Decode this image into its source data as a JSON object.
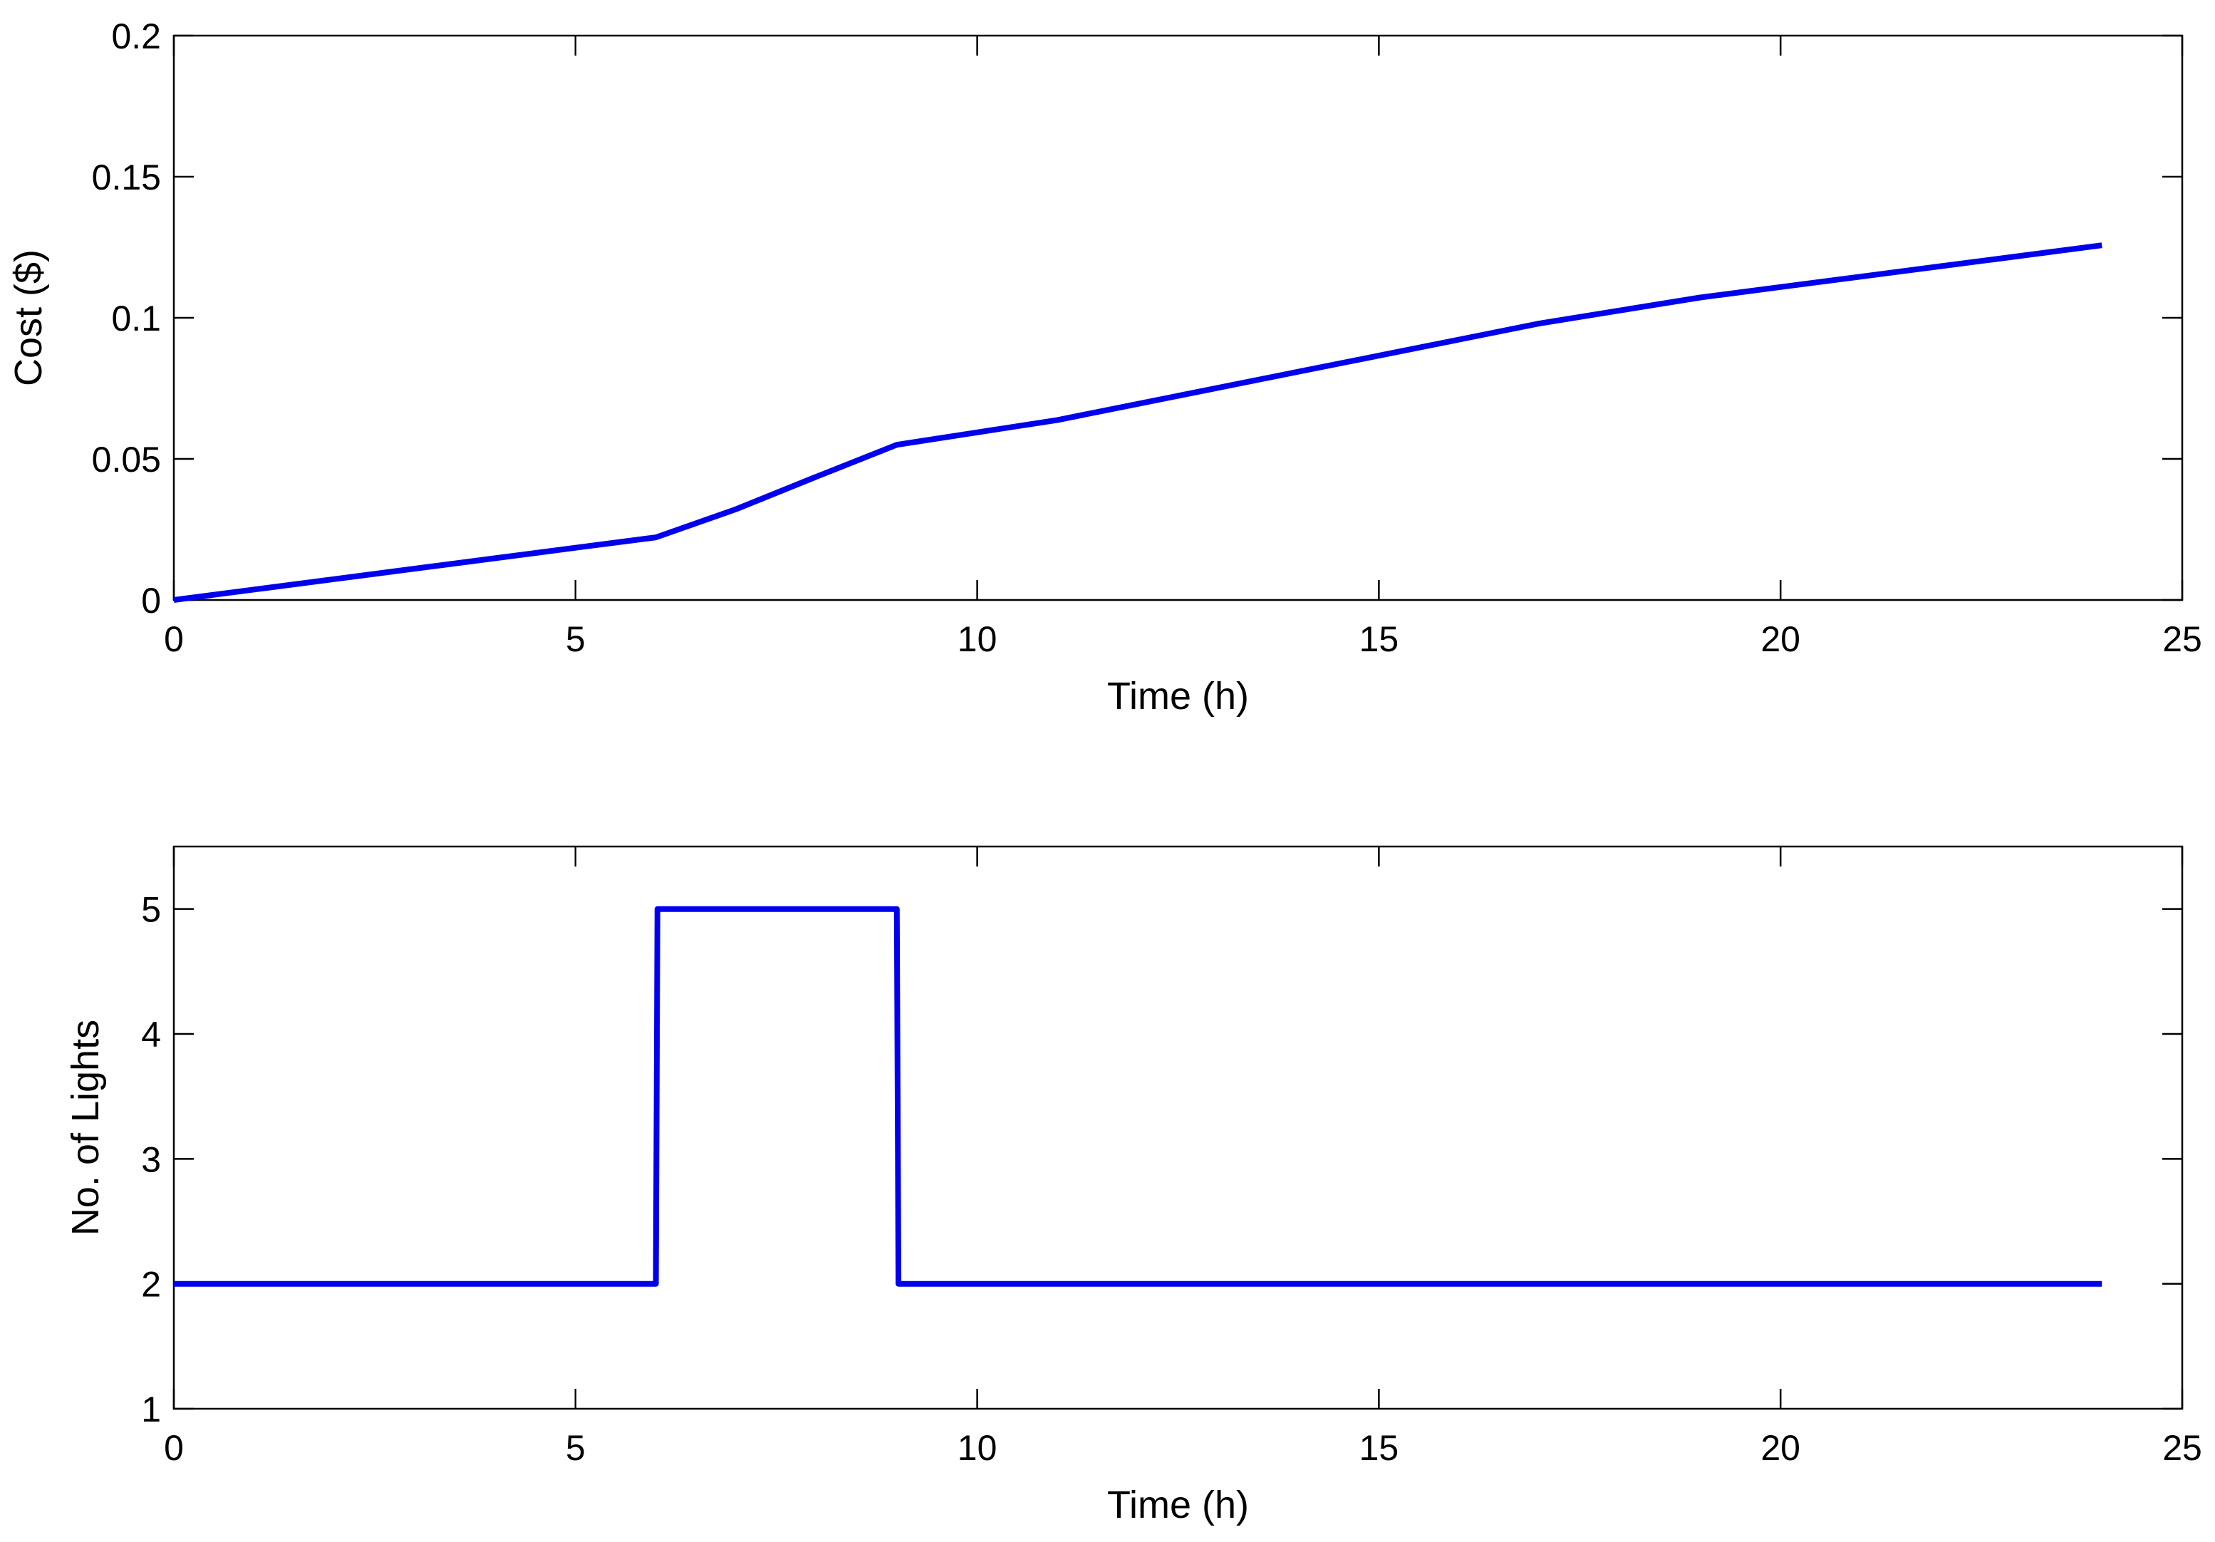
{
  "chart_data": [
    {
      "type": "line",
      "xlabel": "Time (h)",
      "ylabel": "Cost ($)",
      "xlim": [
        0,
        25
      ],
      "ylim": [
        0,
        0.2
      ],
      "xticks": [
        0,
        5,
        10,
        15,
        20,
        25
      ],
      "xtick_labels": [
        "0",
        "5",
        "10",
        "15",
        "20",
        "25"
      ],
      "yticks": [
        0,
        0.05,
        0.1,
        0.15,
        0.2
      ],
      "ytick_labels": [
        "0",
        "0.05",
        "0.1",
        "0.15",
        "0.2"
      ],
      "grid": false,
      "series": [
        {
          "color": "#0000ee",
          "x": [
            0,
            1,
            2,
            3,
            4,
            5,
            6,
            7,
            8,
            9,
            10,
            11,
            12,
            13,
            14,
            15,
            16,
            17,
            18,
            19,
            20,
            21,
            22,
            23,
            24
          ],
          "y": [
            0,
            0.0037,
            0.0074,
            0.0111,
            0.0148,
            0.0185,
            0.0222,
            0.0322,
            0.0437,
            0.055,
            0.0594,
            0.0638,
            0.0695,
            0.0752,
            0.0809,
            0.0866,
            0.0923,
            0.098,
            0.1026,
            0.1072,
            0.1109,
            0.1146,
            0.1183,
            0.122,
            0.1257
          ]
        }
      ]
    },
    {
      "type": "line",
      "xlabel": "Time (h)",
      "ylabel": "No. of Lights",
      "xlim": [
        0,
        25
      ],
      "ylim": [
        1,
        5.5
      ],
      "xticks": [
        0,
        5,
        10,
        15,
        20,
        25
      ],
      "xtick_labels": [
        "0",
        "5",
        "10",
        "15",
        "20",
        "25"
      ],
      "yticks": [
        1,
        2,
        3,
        4,
        5
      ],
      "ytick_labels": [
        "1",
        "2",
        "3",
        "4",
        "5"
      ],
      "grid": false,
      "series": [
        {
          "color": "#0000ee",
          "x": [
            0,
            6,
            6.02,
            9,
            9.02,
            24
          ],
          "y": [
            2,
            2,
            5,
            5,
            2,
            2
          ]
        }
      ]
    }
  ]
}
